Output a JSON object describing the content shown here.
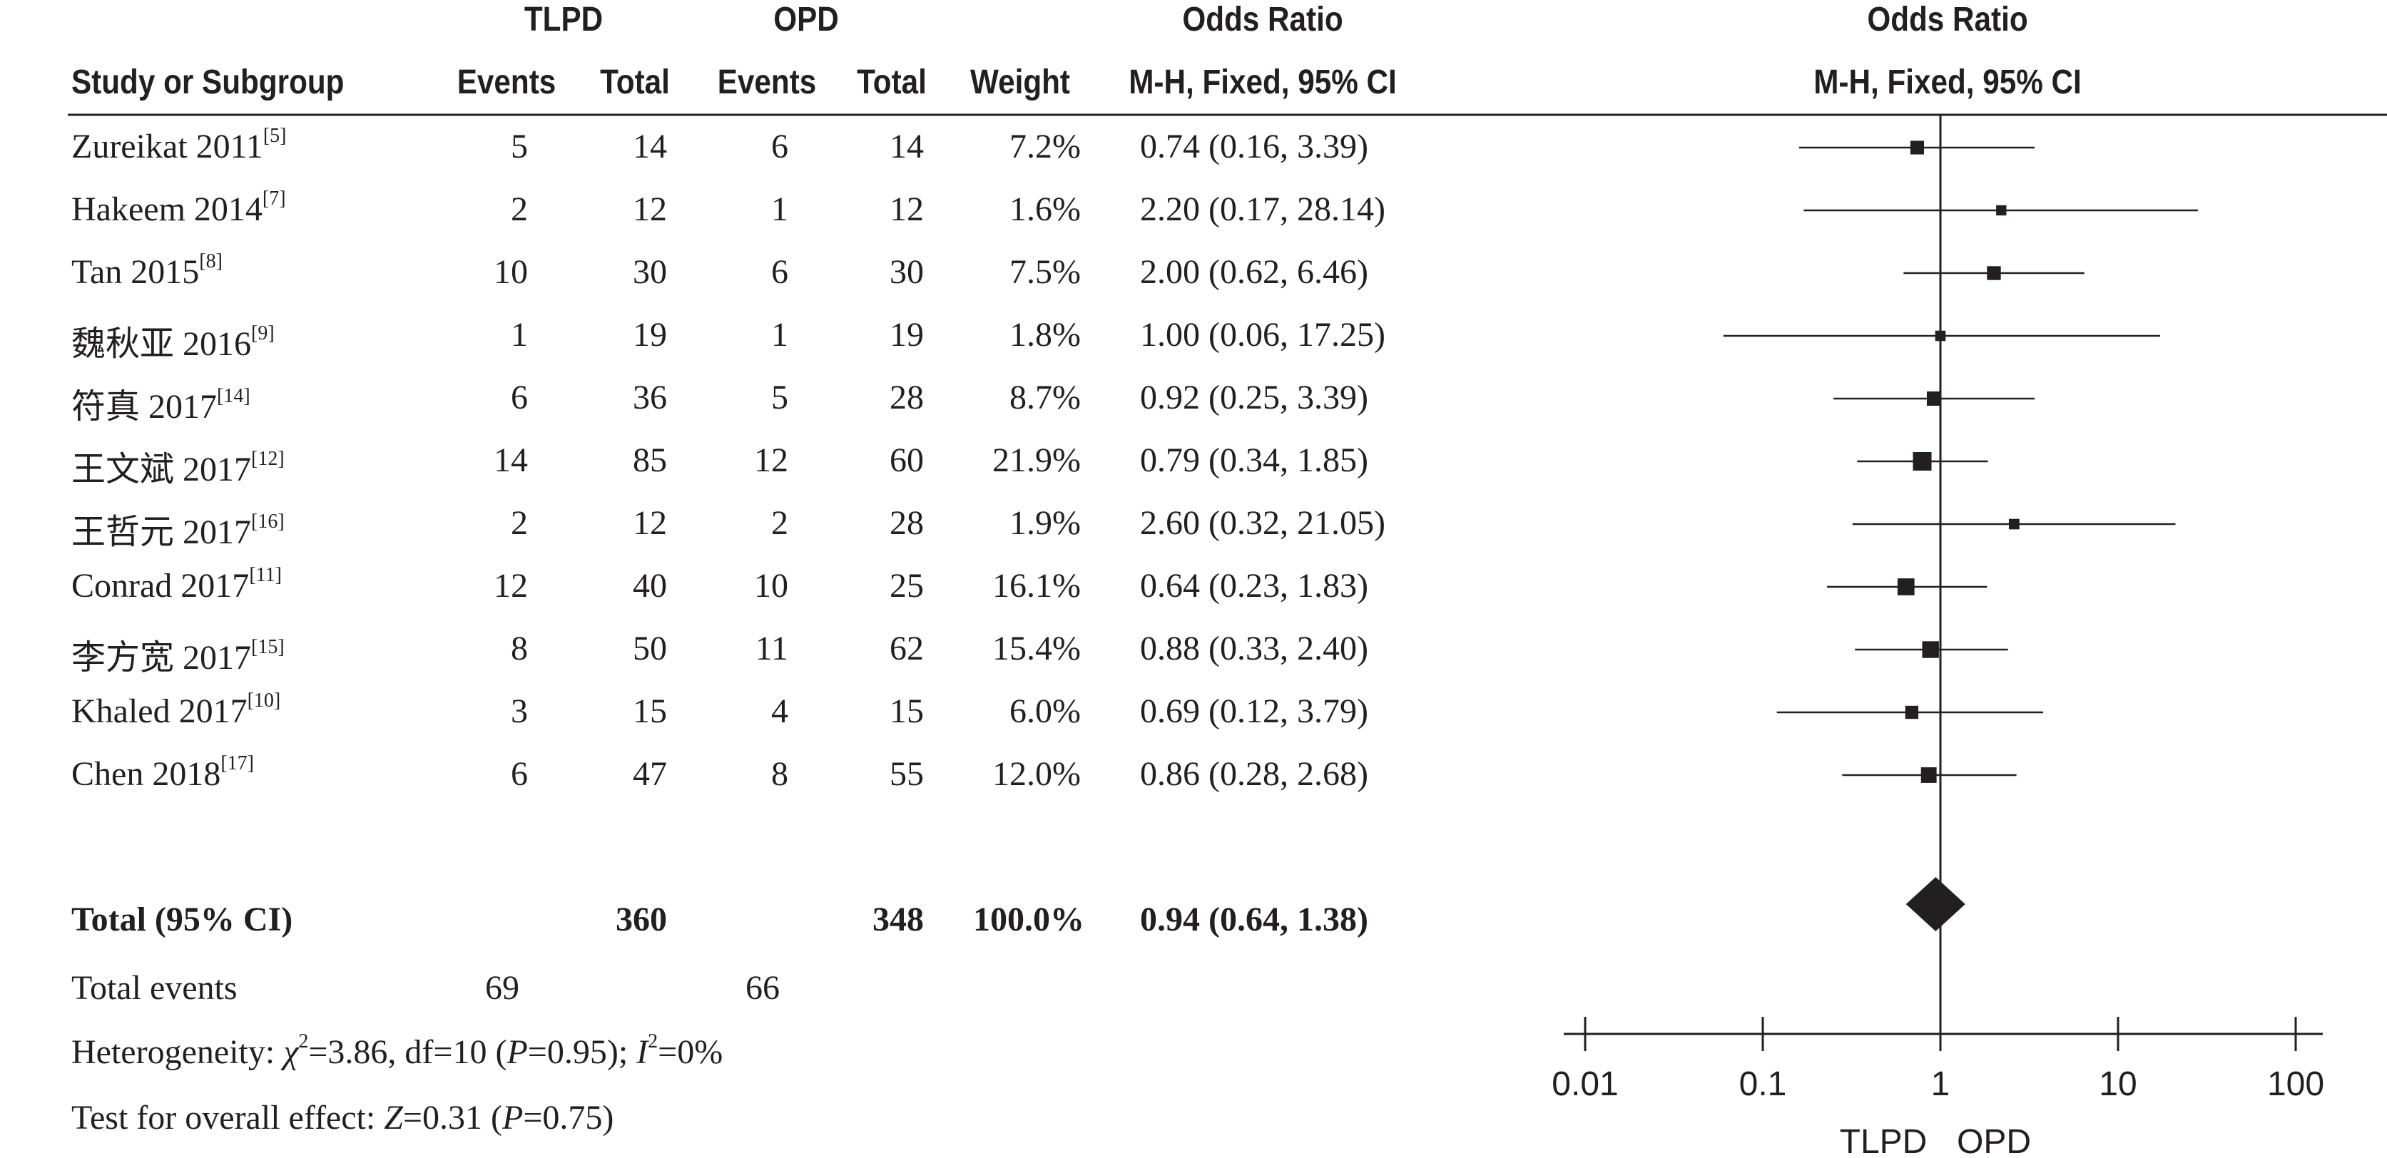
{
  "header": {
    "group1": "TLPD",
    "group2": "OPD",
    "or_title": "Odds Ratio",
    "or_title_plot": "Odds Ratio",
    "study_col": "Study or Subgroup",
    "events1": "Events",
    "total1": "Total",
    "events2": "Events",
    "total2": "Total",
    "weight": "Weight",
    "method": "M-H, Fixed, 95% CI",
    "method_plot": "M-H, Fixed, 95% CI"
  },
  "studies": [
    {
      "name": "Zureikat 2011",
      "ref": "[5]",
      "e1": "5",
      "n1": "14",
      "e2": "6",
      "n2": "14",
      "weight": "7.2%",
      "ci_text": "0.74 (0.16, 3.39)"
    },
    {
      "name": "Hakeem 2014",
      "ref": "[7]",
      "e1": "2",
      "n1": "12",
      "e2": "1",
      "n2": "12",
      "weight": "1.6%",
      "ci_text": "2.20 (0.17, 28.14)"
    },
    {
      "name": "Tan 2015",
      "ref": "[8]",
      "e1": "10",
      "n1": "30",
      "e2": "6",
      "n2": "30",
      "weight": "7.5%",
      "ci_text": "2.00 (0.62, 6.46)"
    },
    {
      "name": "魏秋亚 2016",
      "ref": "[9]",
      "e1": "1",
      "n1": "19",
      "e2": "1",
      "n2": "19",
      "weight": "1.8%",
      "ci_text": "1.00 (0.06, 17.25)"
    },
    {
      "name": "符真 2017",
      "ref": "[14]",
      "e1": "6",
      "n1": "36",
      "e2": "5",
      "n2": "28",
      "weight": "8.7%",
      "ci_text": "0.92 (0.25, 3.39)"
    },
    {
      "name": "王文斌 2017",
      "ref": "[12]",
      "e1": "14",
      "n1": "85",
      "e2": "12",
      "n2": "60",
      "weight": "21.9%",
      "ci_text": "0.79 (0.34, 1.85)"
    },
    {
      "name": "王哲元 2017",
      "ref": "[16]",
      "e1": "2",
      "n1": "12",
      "e2": "2",
      "n2": "28",
      "weight": "1.9%",
      "ci_text": "2.60 (0.32, 21.05)"
    },
    {
      "name": "Conrad 2017",
      "ref": "[11]",
      "e1": "12",
      "n1": "40",
      "e2": "10",
      "n2": "25",
      "weight": "16.1%",
      "ci_text": "0.64 (0.23, 1.83)"
    },
    {
      "name": "李方宽 2017",
      "ref": "[15]",
      "e1": "8",
      "n1": "50",
      "e2": "11",
      "n2": "62",
      "weight": "15.4%",
      "ci_text": "0.88 (0.33, 2.40)"
    },
    {
      "name": "Khaled 2017",
      "ref": "[10]",
      "e1": "3",
      "n1": "15",
      "e2": "4",
      "n2": "15",
      "weight": "6.0%",
      "ci_text": "0.69 (0.12, 3.79)"
    },
    {
      "name": "Chen 2018",
      "ref": "[17]",
      "e1": "6",
      "n1": "47",
      "e2": "8",
      "n2": "55",
      "weight": "12.0%",
      "ci_text": "0.86 (0.28, 2.68)"
    }
  ],
  "total": {
    "label": "Total (95% CI)",
    "n1": "360",
    "n2": "348",
    "weight": "100.0%",
    "ci_text": "0.94 (0.64, 1.38)"
  },
  "events": {
    "label": "Total events",
    "e1": "69",
    "e2": "66"
  },
  "heterogeneity": {
    "label": "Heterogeneity: ",
    "chi_sym": "χ",
    "chi_sup": "2",
    "chi_val": "=3.86, df=10 (",
    "p_sym": "P",
    "p_val": "=0.95); ",
    "i_sym": "I",
    "i_sup": "2",
    "i_val": "=0%"
  },
  "overall": {
    "label": "Test for overall effect: ",
    "z_sym": "Z",
    "z_val": "=0.31 (",
    "p_sym": "P",
    "p_val": "=0.75)"
  },
  "chart_data": {
    "type": "forest",
    "scale": "log",
    "xlim": [
      0.01,
      100
    ],
    "ticks": [
      0.01,
      0.1,
      1,
      10,
      100
    ],
    "tick_labels": [
      "0.01",
      "0.1",
      "1",
      "10",
      "100"
    ],
    "favours_left": "TLPD",
    "favours_right": "OPD",
    "studies": [
      {
        "label": "Zureikat 2011",
        "or": 0.74,
        "lo": 0.16,
        "hi": 3.39,
        "weight": 7.2
      },
      {
        "label": "Hakeem 2014",
        "or": 2.2,
        "lo": 0.17,
        "hi": 28.14,
        "weight": 1.6
      },
      {
        "label": "Tan 2015",
        "or": 2.0,
        "lo": 0.62,
        "hi": 6.46,
        "weight": 7.5
      },
      {
        "label": "魏秋亚 2016",
        "or": 1.0,
        "lo": 0.06,
        "hi": 17.25,
        "weight": 1.8
      },
      {
        "label": "符真 2017",
        "or": 0.92,
        "lo": 0.25,
        "hi": 3.39,
        "weight": 8.7
      },
      {
        "label": "王文斌 2017",
        "or": 0.79,
        "lo": 0.34,
        "hi": 1.85,
        "weight": 21.9
      },
      {
        "label": "王哲元 2017",
        "or": 2.6,
        "lo": 0.32,
        "hi": 21.05,
        "weight": 1.9
      },
      {
        "label": "Conrad 2017",
        "or": 0.64,
        "lo": 0.23,
        "hi": 1.83,
        "weight": 16.1
      },
      {
        "label": "李方宽 2017",
        "or": 0.88,
        "lo": 0.33,
        "hi": 2.4,
        "weight": 15.4
      },
      {
        "label": "Khaled 2017",
        "or": 0.69,
        "lo": 0.12,
        "hi": 3.79,
        "weight": 6.0
      },
      {
        "label": "Chen 2018",
        "or": 0.86,
        "lo": 0.28,
        "hi": 2.68,
        "weight": 12.0
      }
    ],
    "pooled": {
      "label": "Total (95% CI)",
      "or": 0.94,
      "lo": 0.64,
      "hi": 1.38
    }
  }
}
